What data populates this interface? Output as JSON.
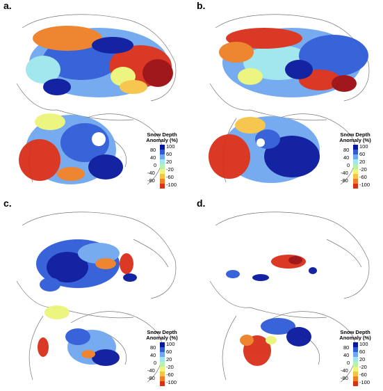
{
  "figure": {
    "panels": [
      {
        "id": "a",
        "label": "a."
      },
      {
        "id": "b",
        "label": "b."
      },
      {
        "id": "c",
        "label": "c."
      },
      {
        "id": "d",
        "label": "d."
      }
    ]
  },
  "legend": {
    "title_line1": "Snow Depth",
    "title_line2": "Anomaly (%)",
    "right_ticks": [
      "100",
      "60",
      "20",
      "-20",
      "-60",
      "-100"
    ],
    "left_ticks": [
      "80",
      "40",
      "0",
      "-40",
      "-80"
    ],
    "colors": [
      "#08189c",
      "#2f5bd6",
      "#6fa7f0",
      "#9fe6ee",
      "#b8f0b0",
      "#eaf57a",
      "#f6c445",
      "#ee7f26",
      "#d9301a",
      "#9c0c10"
    ]
  }
}
